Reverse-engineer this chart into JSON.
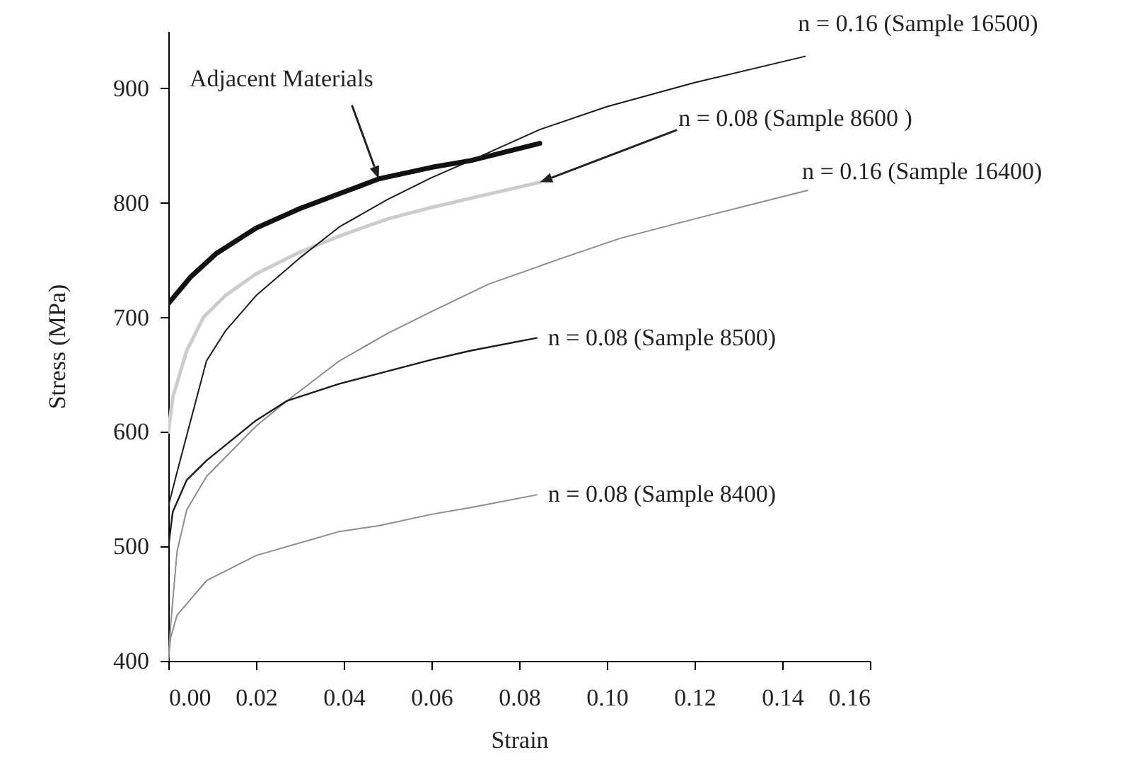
{
  "chart_data": {
    "type": "line",
    "xlabel": "Strain",
    "ylabel": "Stress (MPa)",
    "xlim": [
      0,
      0.16
    ],
    "xticks": [
      {
        "value": 0,
        "label": "0.00"
      },
      {
        "value": 0.02,
        "label": "0.02"
      },
      {
        "value": 0.04,
        "label": "0.04"
      },
      {
        "value": 0.06,
        "label": "0.06"
      },
      {
        "value": 0.08,
        "label": "0.08"
      },
      {
        "value": 0.1,
        "label": "0.10"
      },
      {
        "value": 0.12,
        "label": "0.12"
      },
      {
        "value": 0.14,
        "label": "0.14"
      },
      {
        "value": 0.16,
        "label": "0.16"
      }
    ],
    "annotations": [
      "Adjacent Materials",
      {
        "text": "n = 0.08 (Sample 8600 )",
        "x": 0.0847,
        "y": 818
      }
    ],
    "ylim": [
      400,
      950
    ],
    "yticks": [
      400,
      500,
      600,
      700,
      800,
      900
    ],
    "grid": false,
    "legend": false,
    "series": [
      {
        "color": "#111111",
        "x": [
          0,
          0.005,
          0.011,
          0.02,
          0.03,
          0.039,
          0.048,
          0.06,
          0.069,
          0.0847
        ],
        "values": [
          712,
          735,
          756,
          778,
          795,
          808,
          821,
          831,
          837,
          852
        ]
      },
      {
        "color": "#cccccc",
        "x": [
          0,
          0.001,
          0.0042,
          0.008,
          0.013,
          0.02,
          0.03,
          0.039,
          0.05,
          0.06,
          0.07,
          0.0847
        ],
        "values": [
          600,
          630,
          671,
          700,
          719,
          738,
          757,
          771,
          786,
          796,
          805,
          818
        ]
      },
      {
        "name": "n = 0.16 (Sample 16500)",
        "color": "#1a1a1a",
        "x": [
          0,
          0.002,
          0.0042,
          0.0087,
          0.013,
          0.02,
          0.03,
          0.039,
          0.05,
          0.06,
          0.069,
          0.0847,
          0.1,
          0.12,
          0.1452
        ],
        "values": [
          535,
          565,
          597,
          662,
          688,
          719,
          752,
          779,
          803,
          822,
          837,
          864,
          884,
          905,
          928
        ]
      },
      {
        "name": "n = 0.16 (Sample 16400)",
        "color": "#8c8c8c",
        "x": [
          0,
          0.0005,
          0.002,
          0.0042,
          0.0087,
          0.02,
          0.027,
          0.039,
          0.05,
          0.06,
          0.073,
          0.09,
          0.103,
          0.12,
          0.1458
        ],
        "values": [
          400,
          430,
          496,
          532,
          561,
          605,
          627,
          662,
          686,
          705,
          729,
          752,
          769,
          786,
          811
        ]
      },
      {
        "name": "n = 0.08 (Sample 8500)",
        "color": "#1a1a1a",
        "x": [
          0,
          0.001,
          0.0042,
          0.0087,
          0.02,
          0.027,
          0.039,
          0.048,
          0.06,
          0.069,
          0.084
        ],
        "values": [
          499,
          530,
          558,
          575,
          610,
          627,
          642,
          651,
          663,
          671,
          682
        ]
      },
      {
        "name": "n = 0.08 (Sample 8400)",
        "color": "#8c8c8c",
        "x": [
          0,
          0.0005,
          0.002,
          0.0087,
          0.02,
          0.039,
          0.048,
          0.06,
          0.069,
          0.084
        ],
        "values": [
          400,
          420,
          440,
          470,
          492,
          513,
          518,
          528,
          534,
          545
        ]
      }
    ]
  }
}
